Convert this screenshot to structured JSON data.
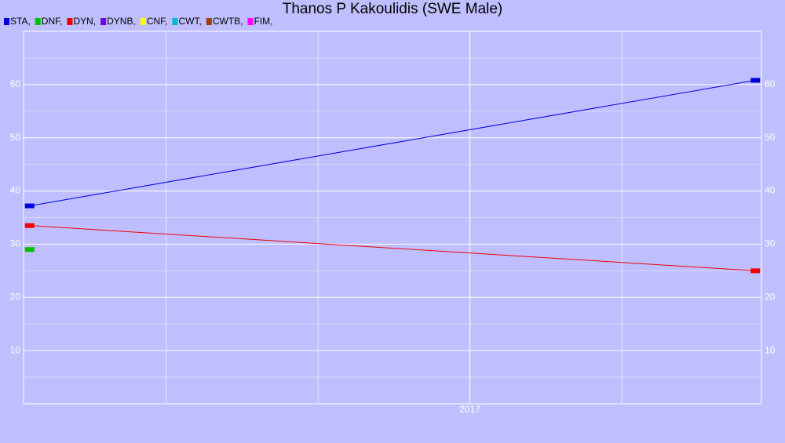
{
  "chart_data": {
    "type": "line",
    "title": "Thanos P Kakoulidis (SWE Male)",
    "series": [
      {
        "name": "STA,",
        "color": "#0000dd",
        "x": [
          2015.55,
          2017.94
        ],
        "values": [
          37.2,
          60.8
        ]
      },
      {
        "name": "DNF,",
        "color": "#00c000",
        "x": [
          2015.55
        ],
        "values": [
          29
        ]
      },
      {
        "name": "DYN,",
        "color": "#ee0000",
        "x": [
          2015.55,
          2017.94
        ],
        "values": [
          33.5,
          25
        ]
      },
      {
        "name": "DYNB,",
        "color": "#7000e0",
        "x": [],
        "values": []
      },
      {
        "name": "CNF,",
        "color": "#ffff00",
        "x": [],
        "values": []
      },
      {
        "name": "CWT,",
        "color": "#00b8d0",
        "x": [],
        "values": []
      },
      {
        "name": "CWTB,",
        "color": "#a04000",
        "x": [],
        "values": []
      },
      {
        "name": "FIM,",
        "color": "#ff00ff",
        "x": [],
        "values": []
      }
    ],
    "xlim": [
      2015.53,
      2017.96
    ],
    "xticks": [
      2017
    ],
    "x_grid": [
      2016,
      2016.5,
      2017,
      2017.5
    ],
    "ylim": [
      0,
      70
    ],
    "yticks": [
      10,
      20,
      30,
      40,
      50,
      60
    ],
    "y_minor_grid": [
      5,
      15,
      25,
      35,
      45,
      55,
      65
    ],
    "grid": true
  }
}
